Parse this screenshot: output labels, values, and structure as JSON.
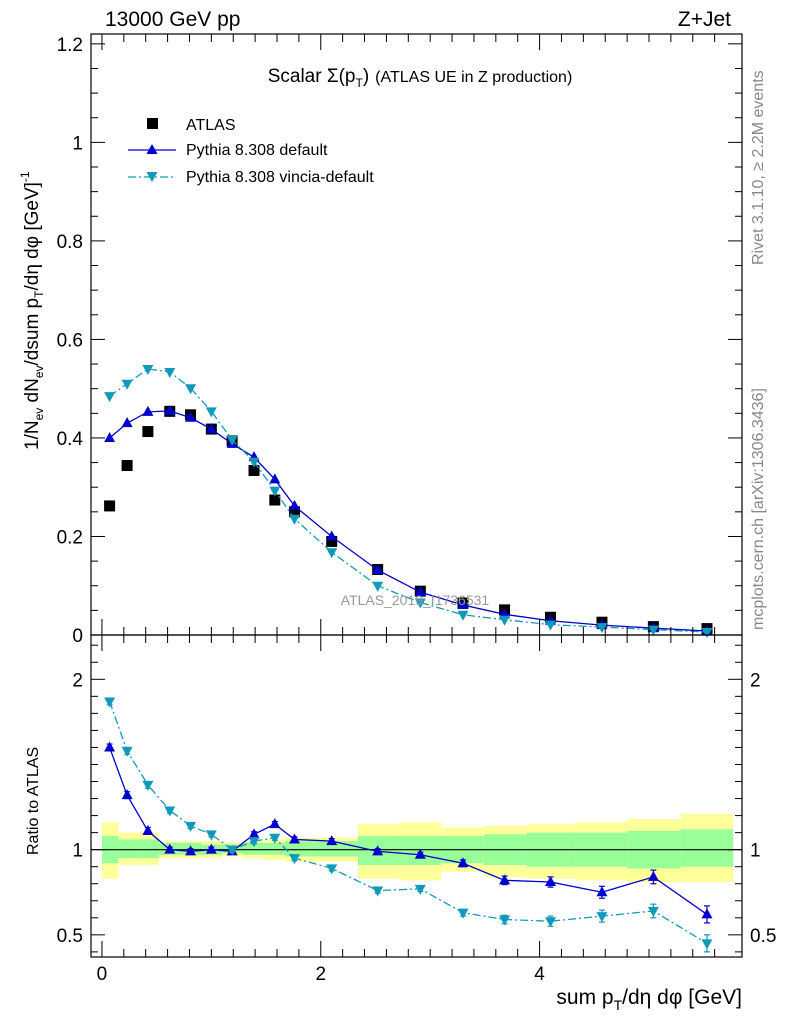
{
  "header": {
    "energy_label": "13000 GeV pp",
    "process_label": "Z+Jet"
  },
  "side_labels": {
    "rivet": "Rivet 3.1.10, ≥ 2.2M events",
    "mcplots": "mcplots.cern.ch [arXiv:1306.3436]"
  },
  "chart_data": [
    {
      "type": "scatter",
      "panel": "main",
      "title": "Scalar Σ(p_T) (ATLAS UE in Z production)",
      "watermark": "ATLAS_2019_I1736531",
      "ylabel": "1/N_ev dN_ev/dsum p_T/dη dφ [GeV]^-1",
      "xlabel": "",
      "xlim": [
        -0.1,
        5.85
      ],
      "ylim": [
        0,
        1.22
      ],
      "x_ticks": [
        "0",
        "2",
        "4"
      ],
      "y_ticks": [
        "0",
        "0.2",
        "0.4",
        "0.6",
        "0.8",
        "1",
        "1.2"
      ],
      "legend": [
        "ATLAS",
        "Pythia 8.308 default",
        "Pythia 8.308 vincia-default"
      ],
      "legend_position": "top-left",
      "series": [
        {
          "name": "ATLAS",
          "style": "black squares",
          "color": "#000000",
          "points": [
            [
              0.07,
              0.262
            ],
            [
              0.23,
              0.344
            ],
            [
              0.42,
              0.413
            ],
            [
              0.62,
              0.454
            ],
            [
              0.81,
              0.447
            ],
            [
              1.0,
              0.418
            ],
            [
              1.19,
              0.394
            ],
            [
              1.39,
              0.334
            ],
            [
              1.58,
              0.274
            ],
            [
              1.76,
              0.25
            ],
            [
              2.1,
              0.19
            ],
            [
              2.52,
              0.133
            ],
            [
              2.91,
              0.089
            ],
            [
              3.3,
              0.065
            ],
            [
              3.68,
              0.051
            ],
            [
              4.1,
              0.036
            ],
            [
              4.57,
              0.026
            ],
            [
              5.04,
              0.017
            ],
            [
              5.53,
              0.013
            ]
          ]
        },
        {
          "name": "Pythia 8.308 default",
          "style": "solid line, up triangles",
          "color": "#0000cc",
          "points": [
            [
              0.07,
              0.4
            ],
            [
              0.23,
              0.43
            ],
            [
              0.42,
              0.453
            ],
            [
              0.62,
              0.455
            ],
            [
              0.81,
              0.441
            ],
            [
              1.0,
              0.418
            ],
            [
              1.19,
              0.388
            ],
            [
              1.39,
              0.361
            ],
            [
              1.58,
              0.316
            ],
            [
              1.76,
              0.262
            ],
            [
              2.1,
              0.2
            ],
            [
              2.52,
              0.132
            ],
            [
              2.91,
              0.087
            ],
            [
              3.3,
              0.061
            ],
            [
              3.68,
              0.042
            ],
            [
              4.1,
              0.029
            ],
            [
              4.57,
              0.02
            ],
            [
              5.04,
              0.014
            ],
            [
              5.53,
              0.008
            ]
          ]
        },
        {
          "name": "Pythia 8.308 vincia-default",
          "style": "dash-dot line, down triangles",
          "color": "#1199bb",
          "points": [
            [
              0.07,
              0.485
            ],
            [
              0.23,
              0.51
            ],
            [
              0.42,
              0.54
            ],
            [
              0.62,
              0.534
            ],
            [
              0.81,
              0.501
            ],
            [
              1.0,
              0.454
            ],
            [
              1.19,
              0.396
            ],
            [
              1.39,
              0.352
            ],
            [
              1.58,
              0.293
            ],
            [
              1.76,
              0.236
            ],
            [
              2.1,
              0.168
            ],
            [
              2.52,
              0.1
            ],
            [
              2.91,
              0.066
            ],
            [
              3.3,
              0.041
            ],
            [
              3.68,
              0.031
            ],
            [
              4.1,
              0.021
            ],
            [
              4.57,
              0.016
            ],
            [
              5.04,
              0.011
            ],
            [
              5.53,
              0.006
            ]
          ]
        }
      ]
    },
    {
      "type": "line",
      "panel": "ratio",
      "ylabel": "Ratio to ATLAS",
      "xlabel": "sum p_T/dη dφ [GeV]",
      "xlim": [
        -0.1,
        5.85
      ],
      "ylim": [
        0.37,
        2.26
      ],
      "x_ticks": [
        "0",
        "2",
        "4"
      ],
      "y_ticks": [
        "0.5",
        "1",
        "2"
      ],
      "reference_line": 1,
      "uncertainty_bands": [
        {
          "x": [
            0.0,
            0.15
          ],
          "inner": [
            0.92,
            1.08
          ],
          "outer": [
            0.83,
            1.16
          ]
        },
        {
          "x": [
            0.15,
            0.33
          ],
          "inner": [
            0.95,
            1.06
          ],
          "outer": [
            0.91,
            1.1
          ]
        },
        {
          "x": [
            0.33,
            0.52
          ],
          "inner": [
            0.95,
            1.06
          ],
          "outer": [
            0.91,
            1.1
          ]
        },
        {
          "x": [
            0.52,
            0.72
          ],
          "inner": [
            0.97,
            1.04
          ],
          "outer": [
            0.95,
            1.05
          ]
        },
        {
          "x": [
            0.72,
            0.91
          ],
          "inner": [
            0.97,
            1.04
          ],
          "outer": [
            0.95,
            1.05
          ]
        },
        {
          "x": [
            0.91,
            1.1
          ],
          "inner": [
            0.97,
            1.03
          ],
          "outer": [
            0.95,
            1.05
          ]
        },
        {
          "x": [
            1.1,
            1.29
          ],
          "inner": [
            0.98,
            1.03
          ],
          "outer": [
            0.96,
            1.04
          ]
        },
        {
          "x": [
            1.29,
            1.48
          ],
          "inner": [
            0.97,
            1.04
          ],
          "outer": [
            0.95,
            1.05
          ]
        },
        {
          "x": [
            1.48,
            1.67
          ],
          "inner": [
            0.97,
            1.04
          ],
          "outer": [
            0.94,
            1.06
          ]
        },
        {
          "x": [
            1.67,
            1.86
          ],
          "inner": [
            0.96,
            1.05
          ],
          "outer": [
            0.93,
            1.07
          ]
        },
        {
          "x": [
            1.86,
            2.34
          ],
          "inner": [
            0.96,
            1.05
          ],
          "outer": [
            0.93,
            1.07
          ]
        },
        {
          "x": [
            2.34,
            2.72
          ],
          "inner": [
            0.91,
            1.08
          ],
          "outer": [
            0.83,
            1.15
          ]
        },
        {
          "x": [
            2.72,
            3.1
          ],
          "inner": [
            0.91,
            1.08
          ],
          "outer": [
            0.82,
            1.16
          ]
        },
        {
          "x": [
            3.1,
            3.49
          ],
          "inner": [
            0.92,
            1.08
          ],
          "outer": [
            0.87,
            1.13
          ]
        },
        {
          "x": [
            3.49,
            3.88
          ],
          "inner": [
            0.91,
            1.09
          ],
          "outer": [
            0.84,
            1.14
          ]
        },
        {
          "x": [
            3.88,
            4.33
          ],
          "inner": [
            0.9,
            1.1
          ],
          "outer": [
            0.83,
            1.15
          ]
        },
        {
          "x": [
            4.33,
            4.8
          ],
          "inner": [
            0.9,
            1.1
          ],
          "outer": [
            0.82,
            1.16
          ]
        },
        {
          "x": [
            4.8,
            5.29
          ],
          "inner": [
            0.89,
            1.11
          ],
          "outer": [
            0.81,
            1.18
          ]
        },
        {
          "x": [
            5.29,
            5.77
          ],
          "inner": [
            0.9,
            1.12
          ],
          "outer": [
            0.81,
            1.21
          ]
        }
      ],
      "series": [
        {
          "name": "Pythia 8.308 default",
          "color": "#0000cc",
          "points": [
            [
              0.07,
              1.6
            ],
            [
              0.23,
              1.32
            ],
            [
              0.42,
              1.11
            ],
            [
              0.62,
              1.0
            ],
            [
              0.81,
              0.99
            ],
            [
              1.0,
              1.0
            ],
            [
              1.19,
              0.99
            ],
            [
              1.39,
              1.09
            ],
            [
              1.58,
              1.15
            ],
            [
              1.76,
              1.06
            ],
            [
              2.1,
              1.05
            ],
            [
              2.52,
              0.99
            ],
            [
              2.91,
              0.97
            ],
            [
              3.3,
              0.92
            ],
            [
              3.68,
              0.82
            ],
            [
              4.1,
              0.81
            ],
            [
              4.57,
              0.75
            ],
            [
              5.04,
              0.84
            ],
            [
              5.53,
              0.62
            ]
          ],
          "errors": [
            0.02,
            0.02,
            0.02,
            0.015,
            0.015,
            0.015,
            0.015,
            0.015,
            0.015,
            0.015,
            0.015,
            0.015,
            0.015,
            0.02,
            0.025,
            0.03,
            0.035,
            0.04,
            0.05
          ]
        },
        {
          "name": "Pythia 8.308 vincia-default",
          "color": "#1199bb",
          "points": [
            [
              0.07,
              1.87
            ],
            [
              0.23,
              1.58
            ],
            [
              0.42,
              1.38
            ],
            [
              0.62,
              1.23
            ],
            [
              0.81,
              1.14
            ],
            [
              1.0,
              1.09
            ],
            [
              1.19,
              1.0
            ],
            [
              1.39,
              1.05
            ],
            [
              1.58,
              1.07
            ],
            [
              1.76,
              0.95
            ],
            [
              2.1,
              0.89
            ],
            [
              2.52,
              0.76
            ],
            [
              2.91,
              0.77
            ],
            [
              3.3,
              0.63
            ],
            [
              3.68,
              0.59
            ],
            [
              4.1,
              0.58
            ],
            [
              4.57,
              0.61
            ],
            [
              5.04,
              0.64
            ],
            [
              5.53,
              0.45
            ]
          ],
          "errors": [
            0.02,
            0.02,
            0.02,
            0.015,
            0.015,
            0.015,
            0.015,
            0.015,
            0.015,
            0.015,
            0.015,
            0.015,
            0.015,
            0.02,
            0.025,
            0.03,
            0.035,
            0.04,
            0.05
          ]
        }
      ]
    }
  ]
}
